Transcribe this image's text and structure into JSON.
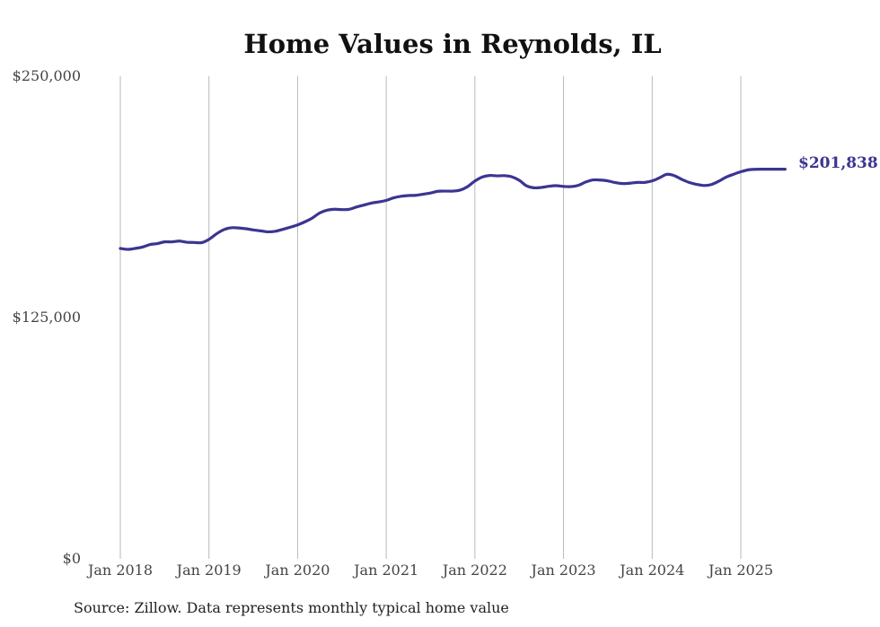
{
  "chart_data": {
    "type": "line",
    "title": "Home Values in Reynolds, IL",
    "xlabel": "",
    "ylabel": "",
    "ylim": [
      0,
      250000
    ],
    "yticks": [
      {
        "value": 0,
        "label": "$0"
      },
      {
        "value": 125000,
        "label": "$125,000"
      },
      {
        "value": 250000,
        "label": "$250,000"
      }
    ],
    "xticks": [
      {
        "value": 2018.0,
        "label": "Jan 2018"
      },
      {
        "value": 2019.0,
        "label": "Jan 2019"
      },
      {
        "value": 2020.0,
        "label": "Jan 2020"
      },
      {
        "value": 2021.0,
        "label": "Jan 2021"
      },
      {
        "value": 2022.0,
        "label": "Jan 2022"
      },
      {
        "value": 2023.0,
        "label": "Jan 2023"
      },
      {
        "value": 2024.0,
        "label": "Jan 2024"
      },
      {
        "value": 2025.0,
        "label": "Jan 2025"
      }
    ],
    "grid": "vertical",
    "legend": "none",
    "color": "#3b3591",
    "series": [
      {
        "x": [
          2018.0,
          2018.083,
          2018.167,
          2018.25,
          2018.333,
          2018.417,
          2018.5,
          2018.583,
          2018.667,
          2018.75,
          2018.833,
          2018.917,
          2019.0,
          2019.083,
          2019.167,
          2019.25,
          2019.333,
          2019.417,
          2019.5,
          2019.583,
          2019.667,
          2019.75,
          2019.833,
          2019.917,
          2020.0,
          2020.083,
          2020.167,
          2020.25,
          2020.333,
          2020.417,
          2020.5,
          2020.583,
          2020.667,
          2020.75,
          2020.833,
          2020.917,
          2021.0,
          2021.083,
          2021.167,
          2021.25,
          2021.333,
          2021.417,
          2021.5,
          2021.583,
          2021.667,
          2021.75,
          2021.833,
          2021.917,
          2022.0,
          2022.083,
          2022.167,
          2022.25,
          2022.333,
          2022.417,
          2022.5,
          2022.583,
          2022.667,
          2022.75,
          2022.833,
          2022.917,
          2023.0,
          2023.083,
          2023.167,
          2023.25,
          2023.333,
          2023.417,
          2023.5,
          2023.583,
          2023.667,
          2023.75,
          2023.833,
          2023.917,
          2024.0,
          2024.083,
          2024.167,
          2024.25,
          2024.333,
          2024.417,
          2024.5,
          2024.583,
          2024.667,
          2024.75,
          2024.833,
          2024.917,
          2025.0,
          2025.083,
          2025.167,
          2025.25,
          2025.333,
          2025.417,
          2025.5
        ],
        "values": [
          160800,
          160300,
          160800,
          161500,
          162800,
          163300,
          164200,
          164200,
          164600,
          164000,
          163900,
          163800,
          165500,
          168300,
          170500,
          171500,
          171400,
          171000,
          170400,
          169900,
          169400,
          169700,
          170700,
          171800,
          173000,
          174600,
          176600,
          179200,
          180600,
          181100,
          180900,
          181100,
          182300,
          183300,
          184300,
          184900,
          185700,
          187000,
          187800,
          188200,
          188300,
          188900,
          189500,
          190400,
          190500,
          190500,
          191000,
          192800,
          195700,
          197800,
          198600,
          198400,
          198500,
          197900,
          196100,
          193200,
          192200,
          192400,
          193000,
          193300,
          192900,
          192800,
          193500,
          195200,
          196300,
          196200,
          195800,
          194900,
          194400,
          194600,
          195000,
          195000,
          195800,
          197400,
          199200,
          198500,
          196600,
          195000,
          194000,
          193400,
          193900,
          195600,
          197700,
          199200,
          200500,
          201500,
          201800,
          201838,
          201838,
          201838,
          201838
        ]
      }
    ],
    "end_label": "$201,838"
  },
  "footer": {
    "source": "Source: Zillow. Data represents monthly typical home value"
  }
}
